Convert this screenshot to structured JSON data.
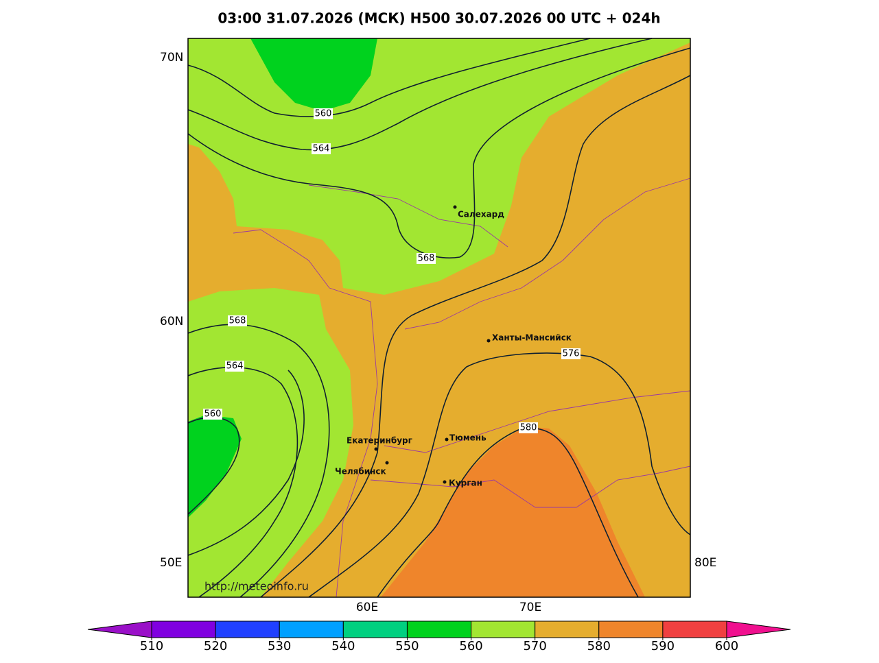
{
  "title": "03:00 31.07.2026 (МСК) H500  30.07.2026 00 UTC + 024h",
  "axis_labels": {
    "lat": [
      "70N",
      "60N"
    ],
    "lon_left": "50E",
    "lon_right": "80E",
    "lon_bottom": [
      "60E",
      "70E"
    ]
  },
  "contour_labels": [
    560,
    564,
    568,
    568,
    564,
    560,
    576,
    580
  ],
  "cities": [
    "Салехард",
    "Ханты-Мансийск",
    "Екатеринбург",
    "Тюмень",
    "Челябинск",
    "Курган"
  ],
  "url": "http://meteoinfo.ru",
  "colorbar": {
    "ticks": [
      510,
      520,
      530,
      540,
      550,
      560,
      570,
      580,
      590,
      600
    ],
    "colors": [
      "#9a10c8",
      "#8000e0",
      "#2040ff",
      "#00a0ff",
      "#00d080",
      "#00d21e",
      "#a2e632",
      "#e5ad2e",
      "#ef852b",
      "#f04040",
      "#f0108f"
    ]
  }
}
